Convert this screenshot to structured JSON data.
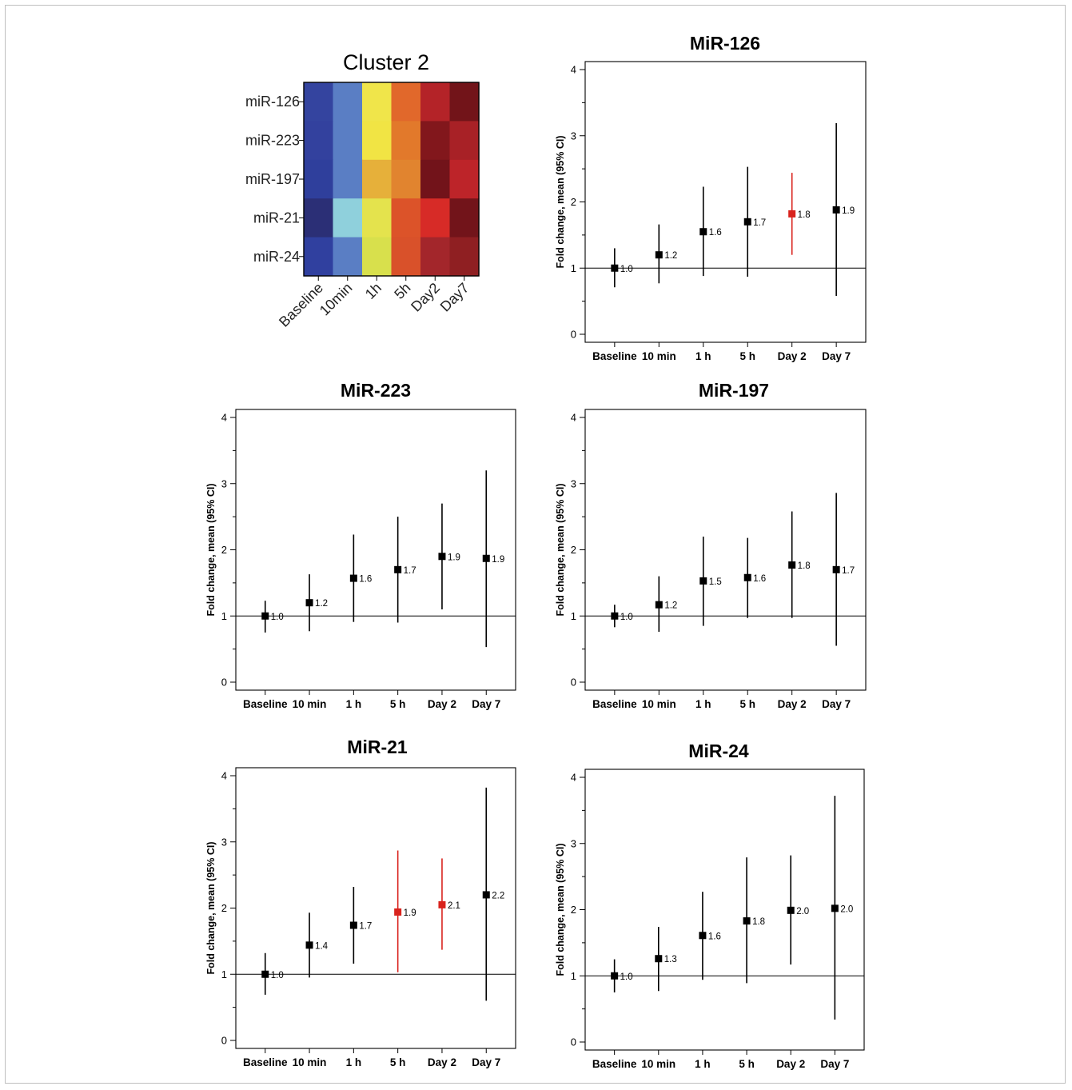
{
  "chart_data": [
    {
      "type": "heatmap",
      "title": "Cluster 2",
      "rows": [
        "miR-126",
        "miR-223",
        "miR-197",
        "miR-21",
        "miR-24"
      ],
      "columns": [
        "Baseline",
        "10min",
        "1h",
        "5h",
        "Day2",
        "Day7"
      ],
      "cell_colors": [
        [
          "#34449f",
          "#5a7ec4",
          "#f0e54a",
          "#e1682b",
          "#b42328",
          "#721419"
        ],
        [
          "#33419e",
          "#5a7ec4",
          "#f1e444",
          "#e2792b",
          "#82171c",
          "#a82126"
        ],
        [
          "#2f3f9c",
          "#5a7ec4",
          "#e6b03a",
          "#e1842f",
          "#72131a",
          "#bd2429"
        ],
        [
          "#2b2f76",
          "#8fd0dc",
          "#e4e34d",
          "#dc5329",
          "#d72b27",
          "#72141a"
        ],
        [
          "#30409f",
          "#5a7ec4",
          "#d8e04c",
          "#d9512a",
          "#a3262b",
          "#8f1f22"
        ]
      ]
    },
    {
      "type": "scatter",
      "title": "MiR-126",
      "ylabel": "Fold change, mean (95% CI)",
      "categories": [
        "Baseline",
        "10 min",
        "1 h",
        "5 h",
        "Day 2",
        "Day 7"
      ],
      "ylim": [
        0,
        4
      ],
      "yticks": [
        "0",
        "1",
        "2",
        "3",
        "4"
      ],
      "reference_line": 1,
      "series": [
        {
          "mean": [
            1.0,
            1.2,
            1.55,
            1.7,
            1.82,
            1.88
          ],
          "lower": [
            0.71,
            0.77,
            0.88,
            0.87,
            1.2,
            0.58
          ],
          "upper": [
            1.3,
            1.66,
            2.23,
            2.53,
            2.44,
            3.19
          ],
          "labels": [
            "1.0",
            "1.2",
            "1.6",
            "1.7",
            "1.8",
            "1.9"
          ],
          "highlight": [
            false,
            false,
            false,
            false,
            true,
            false
          ]
        }
      ]
    },
    {
      "type": "scatter",
      "title": "MiR-223",
      "ylabel": "Fold change, mean (95% CI)",
      "categories": [
        "Baseline",
        "10 min",
        "1 h",
        "5 h",
        "Day 2",
        "Day 7"
      ],
      "ylim": [
        0,
        4
      ],
      "yticks": [
        "0",
        "1",
        "2",
        "3",
        "4"
      ],
      "reference_line": 1,
      "series": [
        {
          "mean": [
            1.0,
            1.2,
            1.57,
            1.7,
            1.9,
            1.87
          ],
          "lower": [
            0.75,
            0.77,
            0.91,
            0.9,
            1.1,
            0.53
          ],
          "upper": [
            1.23,
            1.63,
            2.23,
            2.5,
            2.7,
            3.2
          ],
          "labels": [
            "1.0",
            "1.2",
            "1.6",
            "1.7",
            "1.9",
            "1.9"
          ],
          "highlight": [
            false,
            false,
            false,
            false,
            false,
            false
          ]
        }
      ]
    },
    {
      "type": "scatter",
      "title": "MiR-197",
      "ylabel": "Fold change, mean (95% CI)",
      "categories": [
        "Baseline",
        "10 min",
        "1 h",
        "5 h",
        "Day 2",
        "Day 7"
      ],
      "ylim": [
        0,
        4
      ],
      "yticks": [
        "0",
        "1",
        "2",
        "3",
        "4"
      ],
      "reference_line": 1,
      "series": [
        {
          "mean": [
            1.0,
            1.17,
            1.53,
            1.58,
            1.77,
            1.7
          ],
          "lower": [
            0.83,
            0.76,
            0.85,
            0.97,
            0.97,
            0.55
          ],
          "upper": [
            1.17,
            1.6,
            2.2,
            2.18,
            2.58,
            2.86
          ],
          "labels": [
            "1.0",
            "1.2",
            "1.5",
            "1.6",
            "1.8",
            "1.7"
          ],
          "highlight": [
            false,
            false,
            false,
            false,
            false,
            false
          ]
        }
      ]
    },
    {
      "type": "scatter",
      "title": "MiR-21",
      "ylabel": "Fold change, mean (95% CI)",
      "categories": [
        "Baseline",
        "10 min",
        "1 h",
        "5 h",
        "Day 2",
        "Day 7"
      ],
      "ylim": [
        0,
        4
      ],
      "yticks": [
        "0",
        "1",
        "2",
        "3",
        "4"
      ],
      "reference_line": 1,
      "series": [
        {
          "mean": [
            1.0,
            1.44,
            1.74,
            1.94,
            2.05,
            2.2
          ],
          "lower": [
            0.69,
            0.95,
            1.16,
            1.03,
            1.37,
            0.6
          ],
          "upper": [
            1.32,
            1.93,
            2.32,
            2.87,
            2.75,
            3.82
          ],
          "labels": [
            "1.0",
            "1.4",
            "1.7",
            "1.9",
            "2.1",
            "2.2"
          ],
          "highlight": [
            false,
            false,
            false,
            true,
            true,
            false
          ]
        }
      ]
    },
    {
      "type": "scatter",
      "title": "MiR-24",
      "ylabel": "Fold change, mean (95% CI)",
      "categories": [
        "Baseline",
        "10 min",
        "1 h",
        "5 h",
        "Day 2",
        "Day 7"
      ],
      "ylim": [
        0,
        4
      ],
      "yticks": [
        "0",
        "1",
        "2",
        "3",
        "4"
      ],
      "reference_line": 1,
      "series": [
        {
          "mean": [
            1.0,
            1.26,
            1.61,
            1.83,
            1.99,
            2.02
          ],
          "lower": [
            0.75,
            0.77,
            0.94,
            0.89,
            1.17,
            0.34
          ],
          "upper": [
            1.25,
            1.74,
            2.27,
            2.79,
            2.82,
            3.72
          ],
          "labels": [
            "1.0",
            "1.3",
            "1.6",
            "1.8",
            "2.0",
            "2.0"
          ],
          "highlight": [
            false,
            false,
            false,
            false,
            false,
            false
          ]
        }
      ]
    }
  ],
  "colors": {
    "axis": "#000000",
    "point": "#000000",
    "highlight": "#d9231d",
    "border": "#bfbfbf"
  }
}
